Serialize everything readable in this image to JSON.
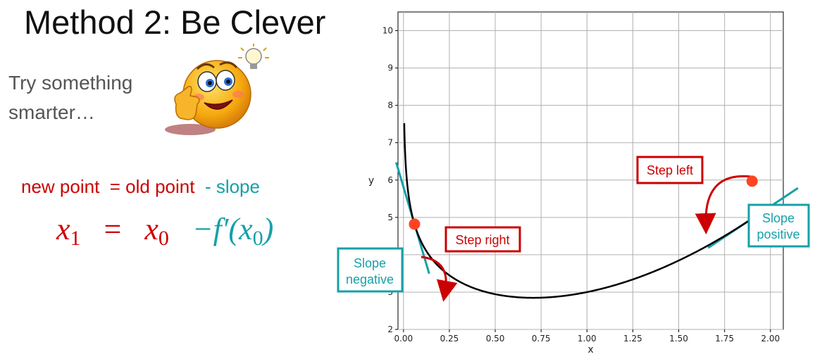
{
  "slide": {
    "title": "Method 2: Be Clever",
    "subtitle_line1": "Try something",
    "subtitle_line2": "smarter…",
    "emoji_icon": "thinking-thumbs-up-emoji",
    "lightbulb_icon": "lightbulb-icon"
  },
  "equation": {
    "words": {
      "new_point": "new point",
      "equals": "= old point",
      "minus_slope": "- slope"
    },
    "math": {
      "lhs": "x",
      "lhs_sub": "1",
      "eq": "=",
      "rhs": "x",
      "rhs_sub": "0",
      "term": "−f′(x",
      "term_sub": "0",
      "close": ")"
    },
    "red": "#cc0000",
    "teal": "#16a0a8"
  },
  "annotations": {
    "step_right": "Step right",
    "step_left": "Step left",
    "slope_negative": [
      "Slope",
      "negative"
    ],
    "slope_positive": [
      "Slope",
      "positive"
    ]
  },
  "chart_data": {
    "type": "line",
    "xlabel": "x",
    "ylabel": "y",
    "xlim": [
      -0.03,
      2.07
    ],
    "ylim": [
      2,
      10.5
    ],
    "xticks": [
      "0.00",
      "0.25",
      "0.50",
      "0.75",
      "1.00",
      "1.25",
      "1.50",
      "1.75",
      "2.00"
    ],
    "yticks": [
      "2",
      "3",
      "4",
      "5",
      "6",
      "7",
      "8",
      "9",
      "10"
    ],
    "grid": true,
    "series": [
      {
        "function": "x^2 - ln(x) + 2",
        "x_range": [
          0.004,
          2.0
        ],
        "color": "#000000"
      }
    ],
    "points": [
      {
        "x": 0.06,
        "y": 4.82,
        "color": "#ff4422"
      },
      {
        "x": 1.9,
        "y": 5.97,
        "color": "#ff4422"
      }
    ],
    "tangents": [
      {
        "at_x": 0.06,
        "slope": -16.55,
        "x_range": [
          -0.04,
          0.14
        ],
        "color": "#16a0a8"
      },
      {
        "at_x": 1.9,
        "slope": 3.27,
        "x_range": [
          1.66,
          2.15
        ],
        "color": "#16a0a8"
      }
    ]
  }
}
